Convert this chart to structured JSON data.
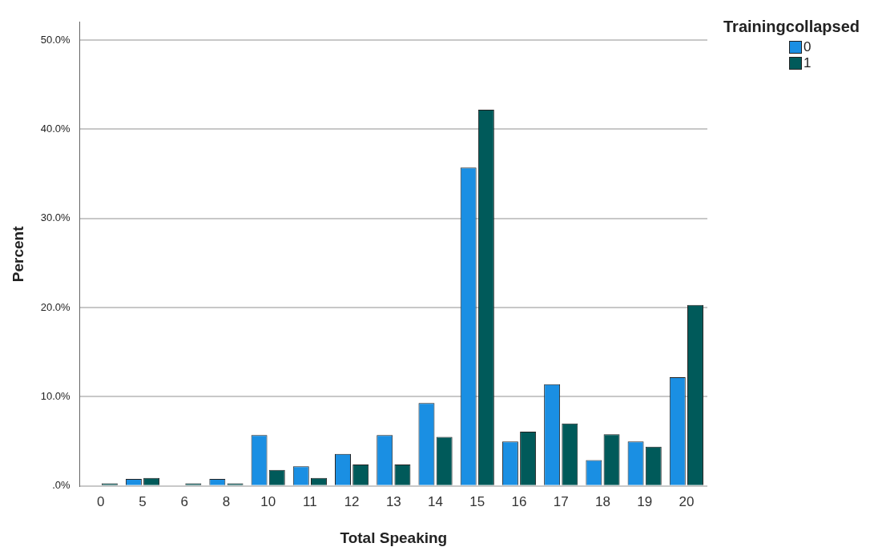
{
  "chart_data": {
    "type": "bar",
    "xlabel": "Total Speaking",
    "ylabel": "Percent",
    "legend_title": "Trainingcollapsed",
    "categories": [
      "0",
      "5",
      "6",
      "8",
      "10",
      "11",
      "12",
      "13",
      "14",
      "15",
      "16",
      "17",
      "18",
      "19",
      "20"
    ],
    "series": [
      {
        "name": "0",
        "color": "#1a8fe3",
        "values": [
          0,
          0.8,
          0,
          0.8,
          5.7,
          2.2,
          3.6,
          5.7,
          9.3,
          35.7,
          5.0,
          11.4,
          2.9,
          5.0,
          12.2
        ]
      },
      {
        "name": "1",
        "color": "#005a5a",
        "values": [
          0.3,
          0.9,
          0.3,
          0.3,
          1.8,
          0.9,
          2.4,
          2.4,
          5.5,
          42.2,
          6.1,
          7.0,
          5.8,
          4.4,
          20.3
        ]
      }
    ],
    "ylim": [
      0,
      52
    ],
    "yticks": [
      {
        "value": 0,
        "label": ".0%"
      },
      {
        "value": 10,
        "label": "10.0%"
      },
      {
        "value": 20,
        "label": "20.0%"
      },
      {
        "value": 30,
        "label": "30.0%"
      },
      {
        "value": 40,
        "label": "40.0%"
      },
      {
        "value": 50,
        "label": "50.0%"
      }
    ],
    "grid": "y",
    "legend": "top right"
  }
}
